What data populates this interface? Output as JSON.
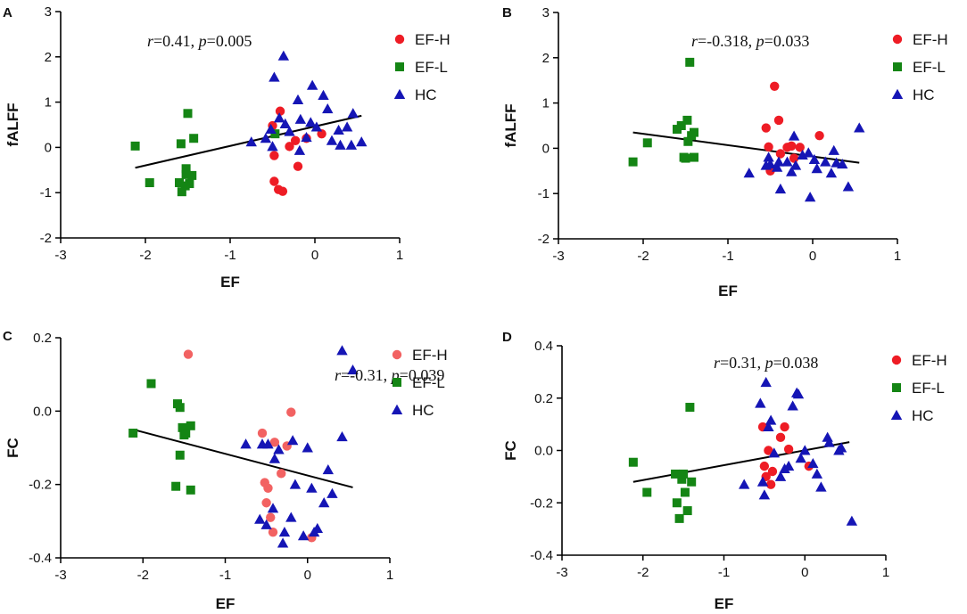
{
  "colors": {
    "ef_h": "#ee1c25",
    "ef_h_light": "#f26262",
    "ef_l": "#148514",
    "hc": "#1515b5",
    "axis": "#000000",
    "fit_line": "#000000"
  },
  "legend_labels": [
    "EF-H",
    "EF-L",
    "HC"
  ],
  "chart_data": [
    {
      "panel": "A",
      "type": "scatter",
      "xlabel": "EF",
      "ylabel": "fALFF",
      "xlim": [
        -3,
        1
      ],
      "ylim": [
        -2,
        3
      ],
      "xticks": [
        -3,
        -2,
        -1,
        0,
        1
      ],
      "yticks": [
        -2,
        -1,
        0,
        1,
        2,
        3
      ],
      "stat_r": "0.41",
      "stat_p": "0.005",
      "fit": [
        [
          -2.12,
          -0.45
        ],
        [
          0.55,
          0.7
        ]
      ],
      "series": [
        {
          "name": "EF-H",
          "marker": "circle",
          "color_key": "ef_h",
          "points": [
            [
              -0.5,
              0.48
            ],
            [
              -0.48,
              -0.18
            ],
            [
              -0.48,
              -0.75
            ],
            [
              -0.43,
              -0.93
            ],
            [
              -0.41,
              0.8
            ],
            [
              -0.38,
              -0.97
            ],
            [
              -0.3,
              0.02
            ],
            [
              -0.23,
              0.15
            ],
            [
              -0.2,
              -0.42
            ],
            [
              -0.1,
              0.2
            ],
            [
              0.08,
              0.3
            ]
          ]
        },
        {
          "name": "EF-L",
          "marker": "square",
          "color_key": "ef_l",
          "points": [
            [
              -2.12,
              0.03
            ],
            [
              -1.95,
              -0.78
            ],
            [
              -1.6,
              -0.78
            ],
            [
              -1.58,
              0.08
            ],
            [
              -1.57,
              -0.98
            ],
            [
              -1.53,
              -0.85
            ],
            [
              -1.52,
              -0.6
            ],
            [
              -1.52,
              -0.47
            ],
            [
              -1.5,
              0.75
            ],
            [
              -1.48,
              -0.8
            ],
            [
              -1.45,
              -0.62
            ],
            [
              -1.43,
              0.2
            ],
            [
              -0.47,
              0.3
            ]
          ]
        },
        {
          "name": "HC",
          "marker": "triangle",
          "color_key": "hc",
          "points": [
            [
              -0.75,
              0.12
            ],
            [
              -0.58,
              0.2
            ],
            [
              -0.52,
              0.4
            ],
            [
              -0.5,
              0.02
            ],
            [
              -0.48,
              1.55
            ],
            [
              -0.42,
              0.65
            ],
            [
              -0.37,
              2.02
            ],
            [
              -0.35,
              0.52
            ],
            [
              -0.3,
              0.35
            ],
            [
              -0.2,
              1.05
            ],
            [
              -0.18,
              -0.07
            ],
            [
              -0.17,
              0.62
            ],
            [
              -0.1,
              0.22
            ],
            [
              -0.05,
              0.55
            ],
            [
              -0.03,
              1.37
            ],
            [
              0.02,
              0.45
            ],
            [
              0.1,
              1.15
            ],
            [
              0.15,
              0.85
            ],
            [
              0.2,
              0.15
            ],
            [
              0.28,
              0.38
            ],
            [
              0.3,
              0.05
            ],
            [
              0.38,
              0.45
            ],
            [
              0.43,
              0.05
            ],
            [
              0.45,
              0.75
            ],
            [
              0.55,
              0.12
            ]
          ]
        }
      ]
    },
    {
      "panel": "B",
      "type": "scatter",
      "xlabel": "EF",
      "ylabel": "fALFF",
      "xlim": [
        -3,
        1
      ],
      "ylim": [
        -2,
        3
      ],
      "xticks": [
        -3,
        -2,
        -1,
        0,
        1
      ],
      "yticks": [
        -2,
        -1,
        0,
        1,
        2,
        3
      ],
      "stat_r": "-0.318",
      "stat_p": "0.033",
      "fit": [
        [
          -2.12,
          0.35
        ],
        [
          0.55,
          -0.32
        ]
      ],
      "series": [
        {
          "name": "EF-H",
          "marker": "circle",
          "color_key": "ef_h",
          "points": [
            [
              -0.55,
              0.45
            ],
            [
              -0.52,
              0.03
            ],
            [
              -0.5,
              -0.5
            ],
            [
              -0.45,
              1.37
            ],
            [
              -0.4,
              0.62
            ],
            [
              -0.38,
              -0.12
            ],
            [
              -0.3,
              0.02
            ],
            [
              -0.25,
              0.05
            ],
            [
              -0.22,
              -0.22
            ],
            [
              -0.15,
              0.02
            ],
            [
              0.08,
              0.28
            ]
          ]
        },
        {
          "name": "EF-L",
          "marker": "square",
          "color_key": "ef_l",
          "points": [
            [
              -2.12,
              -0.3
            ],
            [
              -1.95,
              0.12
            ],
            [
              -1.6,
              0.42
            ],
            [
              -1.55,
              0.5
            ],
            [
              -1.52,
              -0.2
            ],
            [
              -1.5,
              -0.22
            ],
            [
              -1.48,
              0.62
            ],
            [
              -1.47,
              0.15
            ],
            [
              -1.45,
              1.9
            ],
            [
              -1.43,
              0.28
            ],
            [
              -1.4,
              0.35
            ],
            [
              -1.4,
              -0.2
            ]
          ]
        },
        {
          "name": "HC",
          "marker": "triangle",
          "color_key": "hc",
          "points": [
            [
              -0.75,
              -0.55
            ],
            [
              -0.55,
              -0.38
            ],
            [
              -0.52,
              -0.2
            ],
            [
              -0.5,
              -0.35
            ],
            [
              -0.42,
              -0.42
            ],
            [
              -0.4,
              -0.3
            ],
            [
              -0.38,
              -0.9
            ],
            [
              -0.3,
              -0.3
            ],
            [
              -0.25,
              -0.52
            ],
            [
              -0.22,
              0.27
            ],
            [
              -0.2,
              -0.38
            ],
            [
              -0.12,
              -0.15
            ],
            [
              -0.05,
              -0.1
            ],
            [
              -0.03,
              -1.08
            ],
            [
              0.02,
              -0.25
            ],
            [
              0.05,
              -0.45
            ],
            [
              0.15,
              -0.3
            ],
            [
              0.22,
              -0.55
            ],
            [
              0.25,
              -0.05
            ],
            [
              0.28,
              -0.32
            ],
            [
              0.35,
              -0.35
            ],
            [
              0.42,
              -0.85
            ],
            [
              0.55,
              0.45
            ]
          ]
        }
      ]
    },
    {
      "panel": "C",
      "type": "scatter",
      "xlabel": "EF",
      "ylabel": "FC",
      "xlim": [
        -3,
        1
      ],
      "ylim": [
        -0.4,
        0.2
      ],
      "xticks": [
        -3,
        -2,
        -1,
        0,
        1
      ],
      "yticks": [
        -0.4,
        -0.2,
        0.0,
        0.2
      ],
      "ytick_labels": [
        "-0.4",
        "-0.2",
        "0.0",
        "0.2"
      ],
      "stat_r": "-0.31",
      "stat_p": "0.039",
      "fit": [
        [
          -2.12,
          -0.05
        ],
        [
          0.55,
          -0.208
        ]
      ],
      "series": [
        {
          "name": "EF-H",
          "marker": "circle",
          "color_key": "ef_h_light",
          "points": [
            [
              -1.45,
              0.155
            ],
            [
              -0.55,
              -0.06
            ],
            [
              -0.52,
              -0.195
            ],
            [
              -0.5,
              -0.25
            ],
            [
              -0.48,
              -0.21
            ],
            [
              -0.45,
              -0.29
            ],
            [
              -0.42,
              -0.33
            ],
            [
              -0.4,
              -0.085
            ],
            [
              -0.32,
              -0.17
            ],
            [
              -0.25,
              -0.095
            ],
            [
              -0.2,
              -0.003
            ],
            [
              0.05,
              -0.345
            ]
          ]
        },
        {
          "name": "EF-L",
          "marker": "square",
          "color_key": "ef_l",
          "points": [
            [
              -2.12,
              -0.06
            ],
            [
              -1.9,
              0.075
            ],
            [
              -1.6,
              -0.205
            ],
            [
              -1.58,
              0.02
            ],
            [
              -1.55,
              0.01
            ],
            [
              -1.55,
              -0.12
            ],
            [
              -1.52,
              -0.045
            ],
            [
              -1.5,
              -0.065
            ],
            [
              -1.48,
              -0.06
            ],
            [
              -1.42,
              -0.215
            ],
            [
              -1.42,
              -0.04
            ]
          ]
        },
        {
          "name": "HC",
          "marker": "triangle",
          "color_key": "hc",
          "points": [
            [
              -0.75,
              -0.09
            ],
            [
              -0.58,
              -0.295
            ],
            [
              -0.55,
              -0.09
            ],
            [
              -0.5,
              -0.31
            ],
            [
              -0.48,
              -0.09
            ],
            [
              -0.42,
              -0.265
            ],
            [
              -0.4,
              -0.13
            ],
            [
              -0.35,
              -0.105
            ],
            [
              -0.3,
              -0.36
            ],
            [
              -0.28,
              -0.33
            ],
            [
              -0.2,
              -0.29
            ],
            [
              -0.18,
              -0.08
            ],
            [
              -0.15,
              -0.2
            ],
            [
              -0.05,
              -0.34
            ],
            [
              0.0,
              -0.1
            ],
            [
              0.05,
              -0.21
            ],
            [
              0.08,
              -0.33
            ],
            [
              0.12,
              -0.32
            ],
            [
              0.2,
              -0.25
            ],
            [
              0.25,
              -0.16
            ],
            [
              0.3,
              -0.225
            ],
            [
              0.42,
              -0.07
            ],
            [
              0.42,
              0.165
            ],
            [
              0.55,
              0.112
            ]
          ]
        }
      ]
    },
    {
      "panel": "D",
      "type": "scatter",
      "xlabel": "EF",
      "ylabel": "FC",
      "xlim": [
        -3,
        1
      ],
      "ylim": [
        -0.4,
        0.4
      ],
      "xticks": [
        -3,
        -2,
        -1,
        0,
        1
      ],
      "yticks": [
        -0.4,
        -0.2,
        0.0,
        0.2,
        0.4
      ],
      "ytick_labels": [
        "-0.4",
        "-0.2",
        "0.0",
        "0.2",
        "0.4"
      ],
      "stat_r": "0.31",
      "stat_p": "0.038",
      "fit": [
        [
          -2.12,
          -0.12
        ],
        [
          0.55,
          0.032
        ]
      ],
      "series": [
        {
          "name": "EF-H",
          "marker": "circle",
          "color_key": "ef_h",
          "points": [
            [
              -0.52,
              0.09
            ],
            [
              -0.5,
              -0.06
            ],
            [
              -0.48,
              -0.1
            ],
            [
              -0.45,
              0.0
            ],
            [
              -0.42,
              -0.13
            ],
            [
              -0.4,
              -0.08
            ],
            [
              -0.3,
              0.05
            ],
            [
              -0.25,
              0.09
            ],
            [
              -0.2,
              0.005
            ],
            [
              0.05,
              -0.06
            ]
          ]
        },
        {
          "name": "EF-L",
          "marker": "square",
          "color_key": "ef_l",
          "points": [
            [
              -2.12,
              -0.045
            ],
            [
              -1.95,
              -0.16
            ],
            [
              -1.6,
              -0.09
            ],
            [
              -1.58,
              -0.2
            ],
            [
              -1.55,
              -0.26
            ],
            [
              -1.52,
              -0.11
            ],
            [
              -1.5,
              -0.09
            ],
            [
              -1.48,
              -0.16
            ],
            [
              -1.45,
              -0.23
            ],
            [
              -1.42,
              0.165
            ],
            [
              -1.4,
              -0.12
            ]
          ]
        },
        {
          "name": "HC",
          "marker": "triangle",
          "color_key": "hc",
          "points": [
            [
              -0.75,
              -0.13
            ],
            [
              -0.55,
              0.18
            ],
            [
              -0.52,
              -0.12
            ],
            [
              -0.5,
              -0.17
            ],
            [
              -0.48,
              0.26
            ],
            [
              -0.45,
              0.09
            ],
            [
              -0.42,
              0.115
            ],
            [
              -0.38,
              -0.01
            ],
            [
              -0.3,
              -0.1
            ],
            [
              -0.25,
              -0.07
            ],
            [
              -0.2,
              -0.06
            ],
            [
              -0.15,
              0.17
            ],
            [
              -0.1,
              0.22
            ],
            [
              -0.08,
              0.215
            ],
            [
              -0.05,
              -0.03
            ],
            [
              0.0,
              0.0
            ],
            [
              0.1,
              -0.05
            ],
            [
              0.15,
              -0.09
            ],
            [
              0.2,
              -0.14
            ],
            [
              0.28,
              0.05
            ],
            [
              0.3,
              0.03
            ],
            [
              0.42,
              0.0
            ],
            [
              0.45,
              0.01
            ],
            [
              0.58,
              -0.27
            ]
          ]
        }
      ]
    }
  ]
}
